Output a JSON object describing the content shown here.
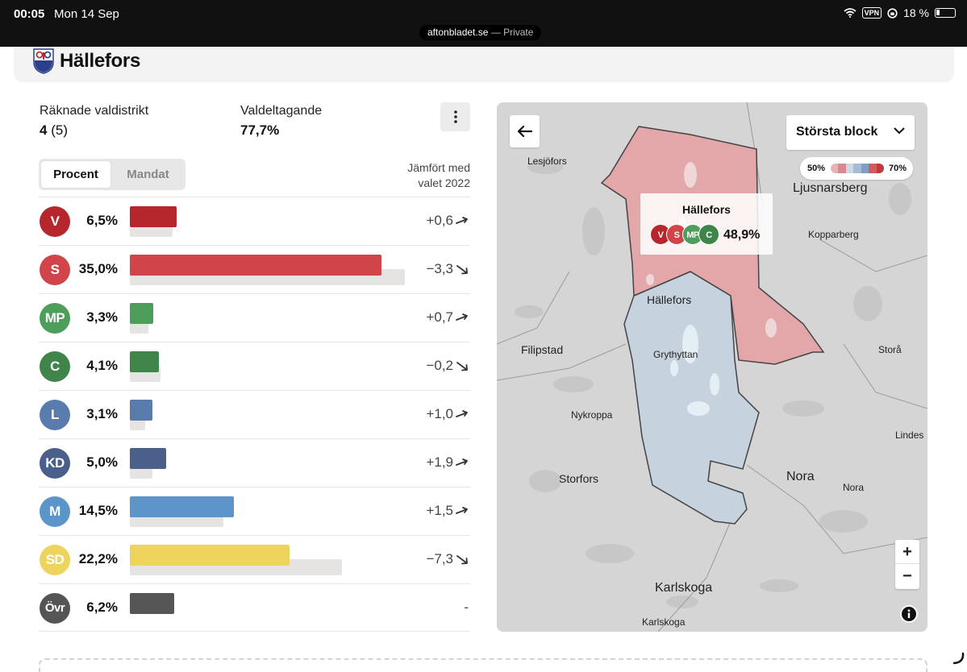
{
  "status_bar": {
    "time": "00:05",
    "date": "Mon 14 Sep",
    "url": "aftonbladet.se",
    "private_label": "— Private",
    "vpn": "VPN",
    "battery_text": "18 %",
    "battery_level": 0.18
  },
  "header": {
    "title": "Hällefors"
  },
  "stats": {
    "districts_label": "Räknade valdistrikt",
    "districts_counted": "4",
    "districts_total": "(5)",
    "turnout_label": "Valdeltagande",
    "turnout_value": "77,7%"
  },
  "toggle": {
    "percent": "Procent",
    "seats": "Mandat"
  },
  "compare_label": [
    "Jämfört med",
    "valet 2022"
  ],
  "parties": [
    {
      "code": "V",
      "pct_text": "6,5%",
      "pct": 6.5,
      "prev": 5.9,
      "change": "+0,6",
      "dir": "up",
      "color": "#b5272d",
      "text_color": "#ffffff"
    },
    {
      "code": "S",
      "pct_text": "35,0%",
      "pct": 35.0,
      "prev": 38.3,
      "change": "−3,3",
      "dir": "down",
      "color": "#d1454a",
      "text_color": "#ffffff"
    },
    {
      "code": "MP",
      "pct_text": "3,3%",
      "pct": 3.3,
      "prev": 2.6,
      "change": "+0,7",
      "dir": "up",
      "color": "#4d9e5a",
      "text_color": "#ffffff"
    },
    {
      "code": "C",
      "pct_text": "4,1%",
      "pct": 4.1,
      "prev": 4.3,
      "change": "−0,2",
      "dir": "down",
      "color": "#3f8549",
      "text_color": "#ffffff"
    },
    {
      "code": "L",
      "pct_text": "3,1%",
      "pct": 3.1,
      "prev": 2.1,
      "change": "+1,0",
      "dir": "up",
      "color": "#5a7cad",
      "text_color": "#ffffff"
    },
    {
      "code": "KD",
      "pct_text": "5,0%",
      "pct": 5.0,
      "prev": 3.1,
      "change": "+1,9",
      "dir": "up",
      "color": "#4a5f8a",
      "text_color": "#ffffff"
    },
    {
      "code": "M",
      "pct_text": "14,5%",
      "pct": 14.5,
      "prev": 13.0,
      "change": "+1,5",
      "dir": "up",
      "color": "#5b95c9",
      "text_color": "#ffffff"
    },
    {
      "code": "SD",
      "pct_text": "22,2%",
      "pct": 22.2,
      "prev": 29.5,
      "change": "−7,3",
      "dir": "down",
      "color": "#eed35c",
      "text_color": "#ffffff"
    },
    {
      "code": "Övr",
      "pct_text": "6,2%",
      "pct": 6.2,
      "prev": 0,
      "change": "-",
      "dir": "none",
      "color": "#555555",
      "text_color": "#ffffff"
    }
  ],
  "map": {
    "select_label": "Största block",
    "legend_low": "50%",
    "legend_high": "70%",
    "legend_colors": [
      "#e9b3b5",
      "#d9898d",
      "#cfd9e4",
      "#a5bcd2",
      "#7da0c4",
      "#d35c61",
      "#c0393f"
    ],
    "tooltip": {
      "name": "Hällefors",
      "parties": [
        "V",
        "S",
        "MP",
        "C"
      ],
      "value": "48,9%"
    },
    "places": [
      {
        "name": "Lesjöfors",
        "size": "small"
      },
      {
        "name": "Ljusnarsberg",
        "size": "large"
      },
      {
        "name": "Kopparberg",
        "size": "small"
      },
      {
        "name": "Hällefors",
        "size": "medium"
      },
      {
        "name": "Filipstad",
        "size": "medium"
      },
      {
        "name": "Grythyttan",
        "size": "small"
      },
      {
        "name": "Storå",
        "size": "small"
      },
      {
        "name": "Nykroppa",
        "size": "small"
      },
      {
        "name": "Lindes",
        "size": "small"
      },
      {
        "name": "Storfors",
        "size": "medium"
      },
      {
        "name": "Nora",
        "size": "large"
      },
      {
        "name": "Nora",
        "size": "small"
      },
      {
        "name": "Karlskoga",
        "size": "large"
      },
      {
        "name": "Karlskoga",
        "size": "small"
      }
    ],
    "zoom_in": "+",
    "zoom_out": "−"
  }
}
